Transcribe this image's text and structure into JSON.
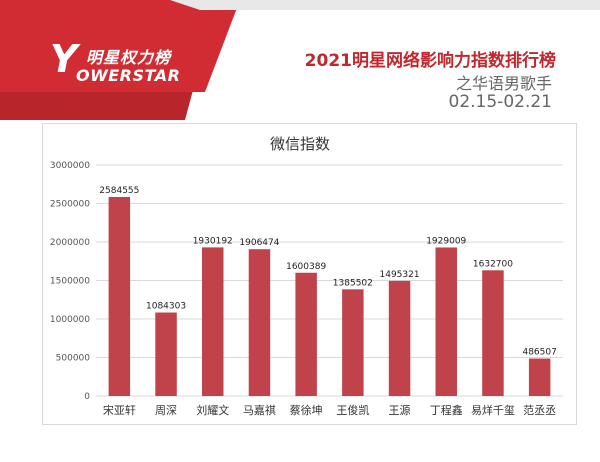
{
  "brand": {
    "logo_mark": "Y",
    "logo_cn": "明星权力榜",
    "logo_en": "OWERSTAR",
    "accent": "#c0282e"
  },
  "header": {
    "title": "2021明星网络影响力指数排行榜",
    "subtitle": "之华语男歌手",
    "date_range": "02.15-02.21"
  },
  "chart_data": {
    "type": "bar",
    "title": "微信指数",
    "xlabel": "",
    "ylabel": "",
    "categories": [
      "宋亚轩",
      "周深",
      "刘耀文",
      "马嘉祺",
      "蔡徐坤",
      "王俊凯",
      "王源",
      "丁程鑫",
      "易烊千玺",
      "范丞丞"
    ],
    "values": [
      2584555,
      1084303,
      1930192,
      1906474,
      1600389,
      1385502,
      1495321,
      1929009,
      1632700,
      486507
    ],
    "ylim": [
      0,
      3000000
    ],
    "yticks": [
      "0",
      "500000",
      "1000000",
      "1500000",
      "2000000",
      "2500000",
      "3000000"
    ],
    "grid": true,
    "legend": "none",
    "bar_color": "#c0434b"
  }
}
